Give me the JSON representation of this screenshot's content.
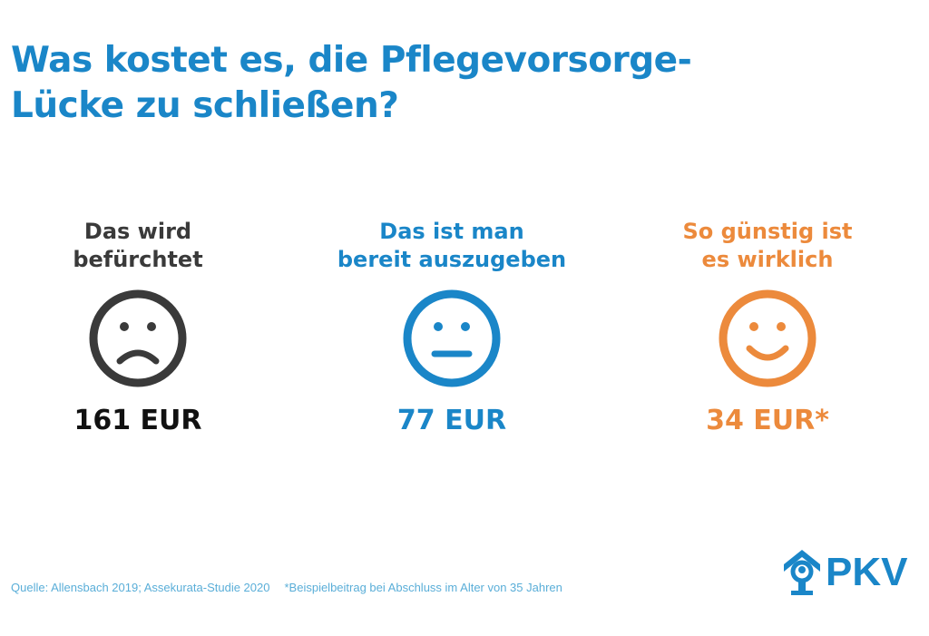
{
  "title": {
    "line1": "Was kostet es, die Pflegevorsorge-",
    "line2": "Lücke zu schließen?"
  },
  "columns": [
    {
      "head1": "Das wird",
      "head2": "befürchtet",
      "icon": "sad-face-icon",
      "amount": "161 EUR",
      "color": "#3a3a3a"
    },
    {
      "head1": "Das ist man",
      "head2": "bereit auszugeben",
      "icon": "neutral-face-icon",
      "amount": "77 EUR",
      "color": "#1a86c8"
    },
    {
      "head1": "So günstig ist",
      "head2": "es wirklich",
      "icon": "happy-face-icon",
      "amount": "34 EUR*",
      "color": "#ec8a3c"
    }
  ],
  "footer": {
    "source": "Quelle: Allensbach 2019; Assekurata-Studie 2020",
    "note": "*Beispielbeitrag bei Abschluss im Alter von 35 Jahren"
  },
  "logo": {
    "text": "PKV",
    "color": "#1a86c8"
  }
}
